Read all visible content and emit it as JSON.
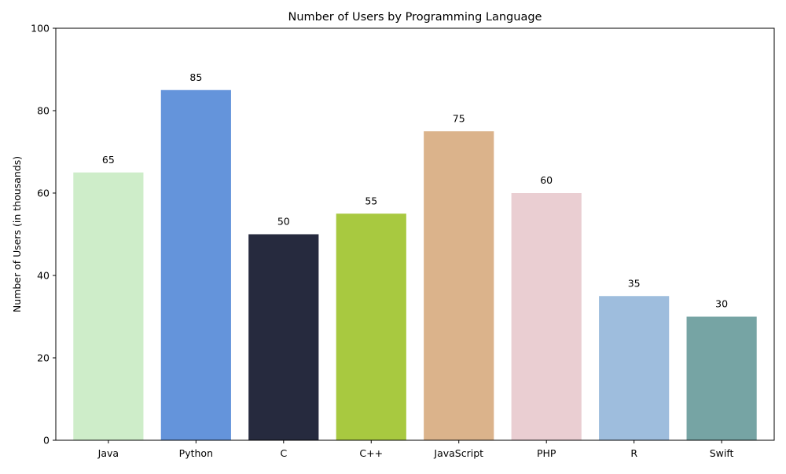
{
  "chart_data": {
    "type": "bar",
    "title": "Number of Users by Programming Language",
    "xlabel": "",
    "ylabel": "Number of Users (in thousands)",
    "categories": [
      "Java",
      "Python",
      "C",
      "C++",
      "JavaScript",
      "PHP",
      "R",
      "Swift"
    ],
    "values": [
      65,
      85,
      50,
      55,
      75,
      60,
      35,
      30
    ],
    "value_labels": [
      "65",
      "85",
      "50",
      "55",
      "75",
      "60",
      "35",
      "30"
    ],
    "colors": [
      "#ceedc9",
      "#6494db",
      "#262a3e",
      "#a8c940",
      "#dbb38b",
      "#eaced2",
      "#9ebddd",
      "#76a4a4"
    ],
    "ylim": [
      0,
      100
    ],
    "yticks": [
      0,
      20,
      40,
      60,
      80,
      100
    ],
    "ytick_labels": [
      "0",
      "20",
      "40",
      "60",
      "80",
      "100"
    ],
    "grid": false,
    "legend": "none"
  }
}
